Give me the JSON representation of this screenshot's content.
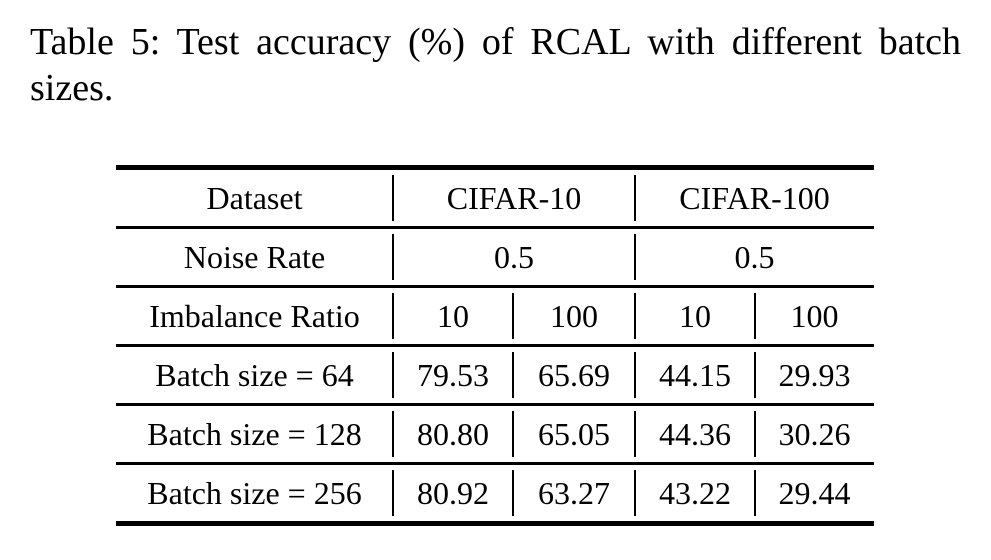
{
  "caption": {
    "full_text": "Table 5: Test accuracy (%) of RCAL with different batch sizes.",
    "line1": "Table 5: Test accuracy (%) of RCAL with different batch",
    "line2": "sizes."
  },
  "table": {
    "style": {
      "text_color": "#000000",
      "background": "#ffffff",
      "rule_color": "#000000"
    },
    "rows": [
      {
        "cells": [
          "Dataset",
          "CIFAR-10",
          "CIFAR-100"
        ]
      },
      {
        "cells": [
          "Noise Rate",
          "0.5",
          "0.5"
        ]
      },
      {
        "cells": [
          "Imbalance Ratio",
          "10",
          "100",
          "10",
          "100"
        ]
      },
      {
        "cells": [
          "Batch size = 64",
          "79.53",
          "65.69",
          "44.15",
          "29.93"
        ]
      },
      {
        "cells": [
          "Batch size = 128",
          "80.80",
          "65.05",
          "44.36",
          "30.26"
        ]
      },
      {
        "cells": [
          "Batch size = 256",
          "80.92",
          "63.27",
          "43.22",
          "29.44"
        ]
      }
    ]
  }
}
